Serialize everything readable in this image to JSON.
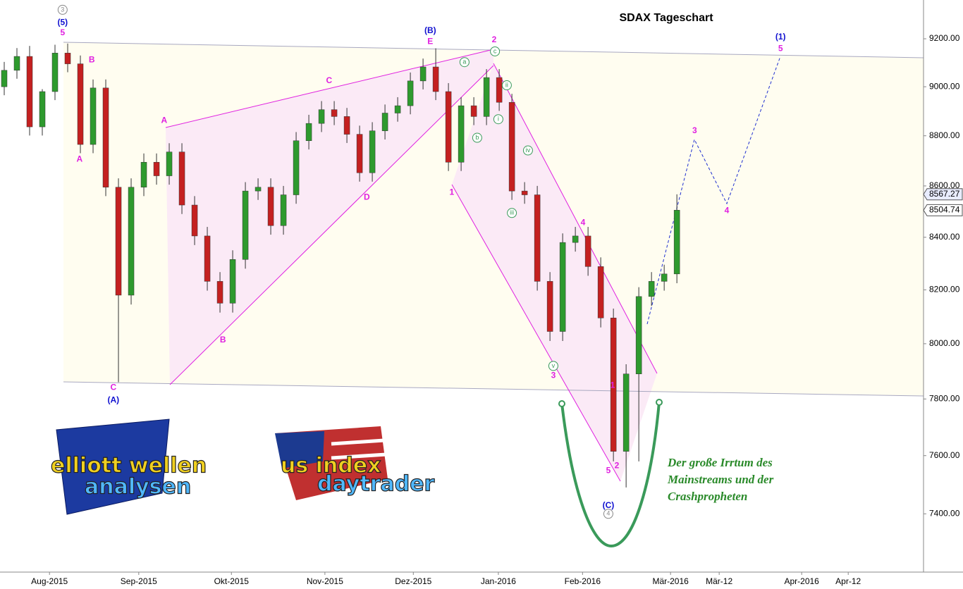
{
  "chart_data": {
    "type": "candlestick",
    "title": "SDAX Tageschart",
    "log_scale": true,
    "ylim": [
      7205,
      9365
    ],
    "yticks": [
      {
        "value": 7400,
        "label": "7400.00"
      },
      {
        "value": 7600,
        "label": "7600.00"
      },
      {
        "value": 7800,
        "label": "7800.00"
      },
      {
        "value": 8000,
        "label": "8000.00"
      },
      {
        "value": 8200,
        "label": "8200.00"
      },
      {
        "value": 8400,
        "label": "8400.00"
      },
      {
        "value": 8600,
        "label": "8600.00"
      },
      {
        "value": 8800,
        "label": "8800.00"
      },
      {
        "value": 9000,
        "label": "9000.00"
      },
      {
        "value": 9200,
        "label": "9200.00"
      }
    ],
    "xlim": [
      0,
      218.3
    ],
    "xticks": [
      {
        "value": 11.7,
        "label": "Aug-2015"
      },
      {
        "value": 32.8,
        "label": "Sep-2015"
      },
      {
        "value": 54.7,
        "label": "Okt-2015"
      },
      {
        "value": 76.8,
        "label": "Nov-2015"
      },
      {
        "value": 97.7,
        "label": "Dez-2015"
      },
      {
        "value": 117.8,
        "label": "Jan-2016"
      },
      {
        "value": 137.7,
        "label": "Feb-2016"
      },
      {
        "value": 158.5,
        "label": "Mär-2016"
      },
      {
        "value": 170,
        "label": "Mär-12"
      },
      {
        "value": 189.5,
        "label": "Apr-2016"
      },
      {
        "value": 200.5,
        "label": "Apr-12"
      }
    ],
    "up_color": "#2e9a2e",
    "down_color": "#c42020",
    "x": [
      1,
      4,
      7,
      10,
      13,
      16,
      19,
      22,
      25,
      28,
      31,
      34,
      37,
      40,
      43,
      46,
      49,
      52,
      55,
      58,
      61,
      64,
      67,
      70,
      73,
      76,
      79,
      82,
      85,
      88,
      91,
      94,
      97,
      100,
      103,
      106,
      109,
      112,
      115,
      118,
      121,
      124,
      127,
      130,
      133,
      136,
      139,
      142,
      145,
      148,
      151,
      154,
      157,
      160
    ],
    "open": [
      9000,
      9068,
      9126,
      8836,
      8980,
      9140,
      9095,
      8765,
      8995,
      8595,
      8180,
      8595,
      8694,
      8640,
      8735,
      8525,
      8405,
      8232,
      8150,
      8315,
      8580,
      8595,
      8445,
      8565,
      8780,
      8850,
      8906,
      8878,
      8806,
      8652,
      8820,
      8892,
      8922,
      9024,
      9082,
      8980,
      8694,
      8922,
      8878,
      9038,
      8936,
      8580,
      8565,
      8232,
      8045,
      8380,
      8405,
      8288,
      8095,
      7615,
      7890,
      8175,
      8232,
      8260
    ],
    "high": [
      9103,
      9161,
      9170,
      8990,
      9175,
      9180,
      9130,
      9030,
      9030,
      8630,
      8630,
      8729,
      8729,
      8770,
      8770,
      8560,
      8440,
      8267,
      8350,
      8615,
      8630,
      8630,
      8600,
      8815,
      8885,
      8941,
      8941,
      8913,
      8841,
      8855,
      8927,
      8957,
      9059,
      9117,
      9160,
      9015,
      8957,
      8957,
      9073,
      9073,
      8971,
      8615,
      8600,
      8267,
      8415,
      8440,
      8440,
      8323,
      8130,
      7925,
      8210,
      8267,
      8295,
      8567
    ],
    "low": [
      8965,
      9033,
      8801,
      8801,
      8945,
      9060,
      8730,
      8730,
      8560,
      7860,
      8145,
      8560,
      8605,
      8605,
      8490,
      8370,
      8197,
      8115,
      8115,
      8280,
      8545,
      8410,
      8410,
      8530,
      8745,
      8815,
      8843,
      8771,
      8617,
      8617,
      8785,
      8857,
      8887,
      8989,
      8945,
      8659,
      8659,
      8843,
      8843,
      8901,
      8545,
      8530,
      8197,
      8010,
      8010,
      8345,
      8253,
      8060,
      7580,
      7490,
      7580,
      8140,
      8197,
      8225
    ],
    "close": [
      9068,
      9126,
      8836,
      8980,
      9140,
      9095,
      8765,
      8995,
      8595,
      8180,
      8595,
      8694,
      8640,
      8735,
      8525,
      8405,
      8232,
      8150,
      8315,
      8580,
      8595,
      8445,
      8565,
      8780,
      8850,
      8906,
      8878,
      8806,
      8652,
      8820,
      8892,
      8922,
      9024,
      9082,
      8980,
      8694,
      8922,
      8878,
      9038,
      8936,
      8580,
      8565,
      8232,
      8045,
      8380,
      8405,
      8288,
      8095,
      7615,
      7890,
      8175,
      8232,
      8260,
      8505
    ],
    "price_markers": [
      8567.27,
      8504.74
    ],
    "annotations": [
      {
        "text": "3",
        "x": 14.8,
        "y": 9323,
        "color": "#888888",
        "circled": true
      },
      {
        "text": "(5)",
        "x": 14.8,
        "y": 9268,
        "color": "#1010d0"
      },
      {
        "text": "5",
        "x": 14.8,
        "y": 9224,
        "color": "#e020e0"
      },
      {
        "text": "B",
        "x": 21.7,
        "y": 9111,
        "color": "#e020e0"
      },
      {
        "text": "A",
        "x": 18.8,
        "y": 8705,
        "color": "#e020e0"
      },
      {
        "text": "C",
        "x": 26.8,
        "y": 7840,
        "color": "#e020e0"
      },
      {
        "text": "(A)",
        "x": 26.8,
        "y": 7795,
        "color": "#1010d0"
      },
      {
        "text": "A",
        "x": 38.8,
        "y": 8861,
        "color": "#e020e0"
      },
      {
        "text": "B",
        "x": 52.7,
        "y": 8013,
        "color": "#e020e0"
      },
      {
        "text": "C",
        "x": 77.8,
        "y": 9024,
        "color": "#e020e0"
      },
      {
        "text": "D",
        "x": 86.7,
        "y": 8555,
        "color": "#e020e0"
      },
      {
        "text": "(B)",
        "x": 101.7,
        "y": 9233,
        "color": "#1010d0"
      },
      {
        "text": "E",
        "x": 101.7,
        "y": 9188,
        "color": "#e020e0"
      },
      {
        "text": "2",
        "x": 116.8,
        "y": 9194,
        "color": "#e020e0"
      },
      {
        "text": "c",
        "x": 117,
        "y": 9147,
        "color": "#3a9a5a",
        "circled": true
      },
      {
        "text": "a",
        "x": 109.8,
        "y": 9102,
        "color": "#3a9a5a",
        "circled": true
      },
      {
        "text": "b",
        "x": 112.8,
        "y": 8792,
        "color": "#3a9a5a",
        "circled": true
      },
      {
        "text": "i",
        "x": 117.8,
        "y": 8867,
        "color": "#3a9a5a",
        "circled": true
      },
      {
        "text": "ii",
        "x": 119.8,
        "y": 9006,
        "color": "#3a9a5a",
        "circled": true
      },
      {
        "text": "iii",
        "x": 121,
        "y": 8494,
        "color": "#3a9a5a",
        "circled": true
      },
      {
        "text": "iv",
        "x": 124.8,
        "y": 8741,
        "color": "#3a9a5a",
        "circled": true
      },
      {
        "text": "v",
        "x": 130.8,
        "y": 7919,
        "color": "#3a9a5a",
        "circled": true
      },
      {
        "text": "3",
        "x": 130.8,
        "y": 7883,
        "color": "#e020e0"
      },
      {
        "text": "1",
        "x": 106.8,
        "y": 8574,
        "color": "#e020e0"
      },
      {
        "text": "4",
        "x": 137.8,
        "y": 8456,
        "color": "#e020e0"
      },
      {
        "text": "1",
        "x": 144.8,
        "y": 7848,
        "color": "#e020e0"
      },
      {
        "text": "2",
        "x": 145.8,
        "y": 7564,
        "color": "#e020e0"
      },
      {
        "text": "5",
        "x": 143.8,
        "y": 7547,
        "color": "#e020e0"
      },
      {
        "text": "(C)",
        "x": 143.8,
        "y": 7427,
        "color": "#1010d0"
      },
      {
        "text": "4",
        "x": 143.8,
        "y": 7400,
        "color": "#888888",
        "circled": true
      },
      {
        "text": "3",
        "x": 164.2,
        "y": 8820,
        "color": "#e020e0"
      },
      {
        "text": "4",
        "x": 171.8,
        "y": 8502,
        "color": "#e020e0"
      },
      {
        "text": "(1)",
        "x": 184.5,
        "y": 9206,
        "color": "#1010d0"
      },
      {
        "text": "5",
        "x": 184.5,
        "y": 9158,
        "color": "#e020e0"
      }
    ],
    "note": [
      "Der große Irrtum des",
      "Mainstreams und der",
      "Crashpropheten"
    ]
  },
  "logos": [
    {
      "lines": [
        "elliott wellen",
        "analysen"
      ]
    },
    {
      "lines": [
        "us index",
        "daytrader"
      ]
    }
  ]
}
